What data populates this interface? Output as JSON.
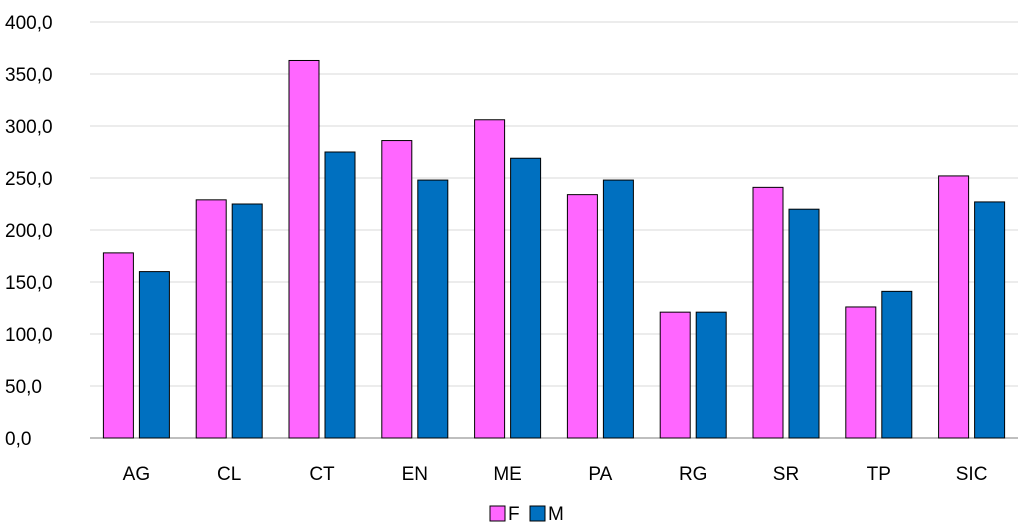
{
  "chart_data": {
    "type": "bar",
    "title": "",
    "xlabel": "",
    "ylabel": "",
    "ylim": [
      0,
      400
    ],
    "ytick_step": 50,
    "grid": "horizontal",
    "legend_position": "bottom-center",
    "categories": [
      "AG",
      "CL",
      "CT",
      "EN",
      "ME",
      "PA",
      "RG",
      "SR",
      "TP",
      "SIC"
    ],
    "series": [
      {
        "name": "F",
        "color": "#ff66ff",
        "values": [
          178,
          229,
          363,
          286,
          306,
          234,
          121,
          241,
          126,
          252
        ]
      },
      {
        "name": "M",
        "color": "#0070c0",
        "values": [
          160,
          225,
          275,
          248,
          269,
          248,
          121,
          220,
          141,
          227
        ]
      }
    ]
  }
}
